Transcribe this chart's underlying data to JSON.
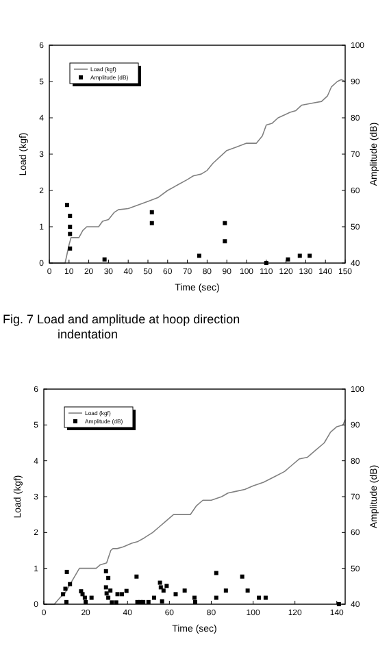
{
  "chart_data": [
    {
      "type": "line",
      "xlabel": "Time (sec)",
      "ylabel": "Load (kgf)",
      "y2label": "Amplitude (dB)",
      "xlim": [
        0,
        150
      ],
      "xticks": [
        0,
        10,
        20,
        30,
        40,
        50,
        60,
        70,
        80,
        90,
        100,
        110,
        120,
        130,
        140,
        150
      ],
      "ylim": [
        0,
        6
      ],
      "yticks": [
        0,
        1,
        2,
        3,
        4,
        5,
        6
      ],
      "y2lim": [
        40,
        100
      ],
      "y2ticks": [
        40,
        50,
        60,
        70,
        80,
        90,
        100
      ],
      "legend": "top left",
      "grid": false,
      "annotations": [
        "Fig. 7  Load and amplitude at hoop direction indentation"
      ],
      "series": [
        {
          "name": "Load (kgf)",
          "color": "#808080",
          "marker": "none",
          "line_style": "solid",
          "x": [
            0,
            8,
            10,
            11,
            15,
            17,
            19,
            25,
            27,
            30,
            33,
            35,
            40,
            45,
            50,
            55,
            60,
            65,
            70,
            73,
            77,
            80,
            83,
            87,
            90,
            95,
            100,
            105,
            108,
            110,
            113,
            116,
            120,
            122,
            125,
            128,
            133,
            138,
            141,
            143,
            146,
            148,
            150
          ],
          "values": [
            0,
            0,
            0.5,
            0.7,
            0.7,
            0.9,
            1.0,
            1.0,
            1.15,
            1.2,
            1.4,
            1.47,
            1.5,
            1.6,
            1.7,
            1.8,
            2.0,
            2.15,
            2.3,
            2.4,
            2.45,
            2.55,
            2.75,
            2.95,
            3.1,
            3.2,
            3.3,
            3.3,
            3.5,
            3.8,
            3.85,
            4.0,
            4.1,
            4.15,
            4.2,
            4.35,
            4.4,
            4.45,
            4.6,
            4.85,
            5.0,
            5.05,
            5.0
          ]
        },
        {
          "name": "Amplitude (dB)",
          "type": "scatter",
          "axis": "y2",
          "color": "#000000",
          "marker": "square",
          "x": [
            9,
            10.5,
            10.5,
            10.5,
            10.5,
            28,
            52,
            52,
            76,
            89,
            89,
            110,
            121,
            127,
            132
          ],
          "values": [
            56,
            53,
            50,
            48,
            44,
            41,
            54,
            51,
            42,
            51,
            46,
            40,
            41,
            42,
            42
          ]
        }
      ]
    },
    {
      "type": "line",
      "xlabel": "Time (sec)",
      "ylabel": "Load (kgf)",
      "y2label": "Amplitude (dB)",
      "xlim": [
        0,
        144
      ],
      "xticks": [
        0,
        20,
        40,
        60,
        80,
        100,
        120,
        140
      ],
      "ylim": [
        0,
        6
      ],
      "yticks": [
        0,
        1,
        2,
        3,
        4,
        5,
        6
      ],
      "y2lim": [
        40,
        100
      ],
      "y2ticks": [
        40,
        50,
        60,
        70,
        80,
        90,
        100
      ],
      "legend": "top left",
      "grid": false,
      "series": [
        {
          "name": "Load (kgf)",
          "color": "#808080",
          "marker": "none",
          "line_style": "solid",
          "x": [
            0,
            5,
            8,
            10,
            13,
            15,
            17,
            20,
            25,
            27,
            30,
            32,
            33,
            35,
            38,
            42,
            45,
            48,
            52,
            55,
            58,
            62,
            65,
            70,
            73,
            76,
            80,
            85,
            88,
            92,
            96,
            100,
            105,
            110,
            115,
            118,
            122,
            126,
            130,
            134,
            137,
            140,
            143,
            144
          ],
          "values": [
            0,
            0,
            0.2,
            0.3,
            0.6,
            0.8,
            1.0,
            1.0,
            1.0,
            1.1,
            1.15,
            1.5,
            1.55,
            1.55,
            1.6,
            1.7,
            1.75,
            1.85,
            2.0,
            2.15,
            2.3,
            2.5,
            2.5,
            2.5,
            2.75,
            2.9,
            2.9,
            3.0,
            3.1,
            3.15,
            3.2,
            3.3,
            3.4,
            3.55,
            3.7,
            3.85,
            4.05,
            4.1,
            4.3,
            4.5,
            4.8,
            4.95,
            5.0,
            5.15
          ]
        },
        {
          "name": "Amplitude (dB)",
          "type": "scatter",
          "axis": "y2",
          "color": "#000000",
          "marker": "square",
          "x": [
            9.2,
            10.3,
            11,
            10.8,
            12.5,
            17.8,
            18.5,
            19.6,
            20,
            22.8,
            29.7,
            29.7,
            30,
            30.8,
            30.8,
            31.8,
            32.5,
            34.6,
            35.2,
            37.3,
            39.5,
            44.3,
            44.7,
            46.2,
            47.5,
            50,
            52.7,
            55.5,
            55.9,
            56.5,
            57.2,
            58.7,
            63,
            67.3,
            72,
            72.3,
            82.4,
            82.4,
            87,
            94.8,
            97.4,
            102.8,
            106,
            141
          ],
          "values": [
            42.8,
            44.3,
            49,
            40.6,
            45.6,
            43.6,
            42.8,
            41.8,
            40.6,
            41.8,
            49.2,
            44.7,
            43,
            47.3,
            41.8,
            43.8,
            40.5,
            40.5,
            42.8,
            42.8,
            43.7,
            47.7,
            40.6,
            40.6,
            40.6,
            40.6,
            41.8,
            46,
            44.7,
            40.8,
            43.8,
            45.1,
            42.8,
            43.8,
            41.8,
            40.6,
            48.7,
            41.8,
            43.8,
            47.7,
            43.8,
            41.8,
            41.8,
            40
          ]
        }
      ]
    }
  ]
}
